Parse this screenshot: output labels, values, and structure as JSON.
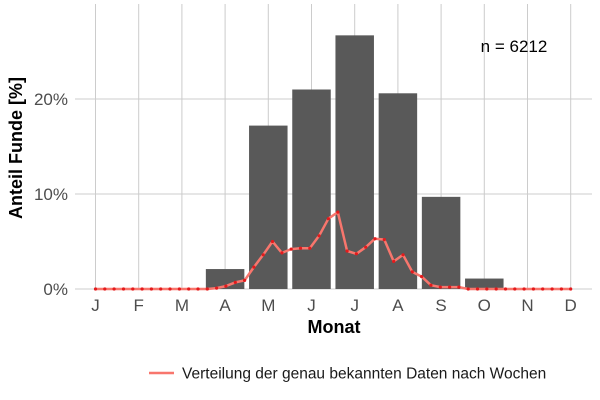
{
  "chart_data": {
    "type": "bar",
    "categories": [
      "J",
      "F",
      "M",
      "A",
      "M",
      "J",
      "J",
      "A",
      "S",
      "O",
      "N",
      "D"
    ],
    "values": [
      0,
      0,
      0,
      2.1,
      17.2,
      21.0,
      26.7,
      20.6,
      9.7,
      1.1,
      0,
      0
    ],
    "xlabel": "Monat",
    "ylabel": "Anteil Funde [%]",
    "ylim": [
      0,
      30
    ],
    "yticks": [
      0,
      10,
      20
    ],
    "ytick_labels": [
      "0%",
      "10%",
      "20%"
    ],
    "annotation": "n = 6212",
    "grid": true,
    "legend_position": "bottom-right",
    "line_series": {
      "name": "Verteilung der genau bekannten Daten nach Wochen",
      "x": [
        1,
        2,
        3,
        4,
        5,
        6,
        7,
        8,
        9,
        10,
        11,
        12,
        13,
        14,
        15,
        16,
        17,
        18,
        19,
        20,
        21,
        22,
        23,
        24,
        25,
        26,
        27,
        28,
        29,
        30,
        31,
        32,
        33,
        34,
        35,
        36,
        37,
        38,
        39,
        40,
        41,
        42,
        43,
        44,
        45,
        46,
        47,
        48,
        49,
        50,
        51,
        52
      ],
      "y": [
        0,
        0,
        0,
        0,
        0,
        0,
        0,
        0,
        0,
        0,
        0,
        0,
        0,
        0.1,
        0.3,
        0.7,
        0.9,
        2.3,
        3.6,
        5.0,
        3.8,
        4.2,
        4.3,
        4.3,
        5.6,
        7.4,
        8.1,
        4.0,
        3.7,
        4.4,
        5.3,
        5.2,
        2.9,
        3.6,
        1.8,
        1.3,
        0.4,
        0.2,
        0.2,
        0.2,
        0,
        0,
        0,
        0,
        0,
        0,
        0,
        0,
        0,
        0,
        0,
        0
      ]
    },
    "colors": {
      "bar": "#595959",
      "line": "#F8766D",
      "points": "#E41A1C",
      "grid": "#CCCCCC"
    }
  }
}
